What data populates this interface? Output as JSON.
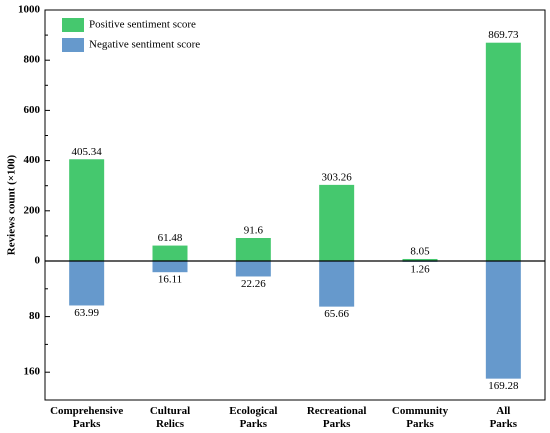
{
  "chart_data": {
    "type": "bar",
    "y_label": "Reviews count (×100)",
    "categories": [
      "Comprehensive\nParks",
      "Cultural\nRelics",
      "Ecological\nParks",
      "Recreational\nParks",
      "Community\nParks",
      "All\nParks"
    ],
    "series": [
      {
        "name": "Positive sentiment score",
        "color": "#45c86e",
        "values": [
          405.34,
          61.48,
          91.6,
          303.26,
          8.05,
          869.73
        ]
      },
      {
        "name": "Negative sentiment score",
        "color": "#6699cc",
        "axis": "y2",
        "values": [
          63.99,
          16.11,
          22.26,
          65.66,
          1.26,
          169.28
        ]
      }
    ],
    "ylim": [
      0,
      1000
    ],
    "yticks": [
      0,
      200,
      400,
      600,
      800,
      1000
    ],
    "yminor_ticks": [
      100,
      300,
      500,
      700,
      900
    ],
    "y2lim": [
      0,
      200
    ],
    "y2ticks": [
      80,
      160
    ],
    "y2minor_ticks": [
      40,
      120,
      200
    ],
    "y2_direction": "down",
    "legend_position": "upper left",
    "grid": false
  }
}
